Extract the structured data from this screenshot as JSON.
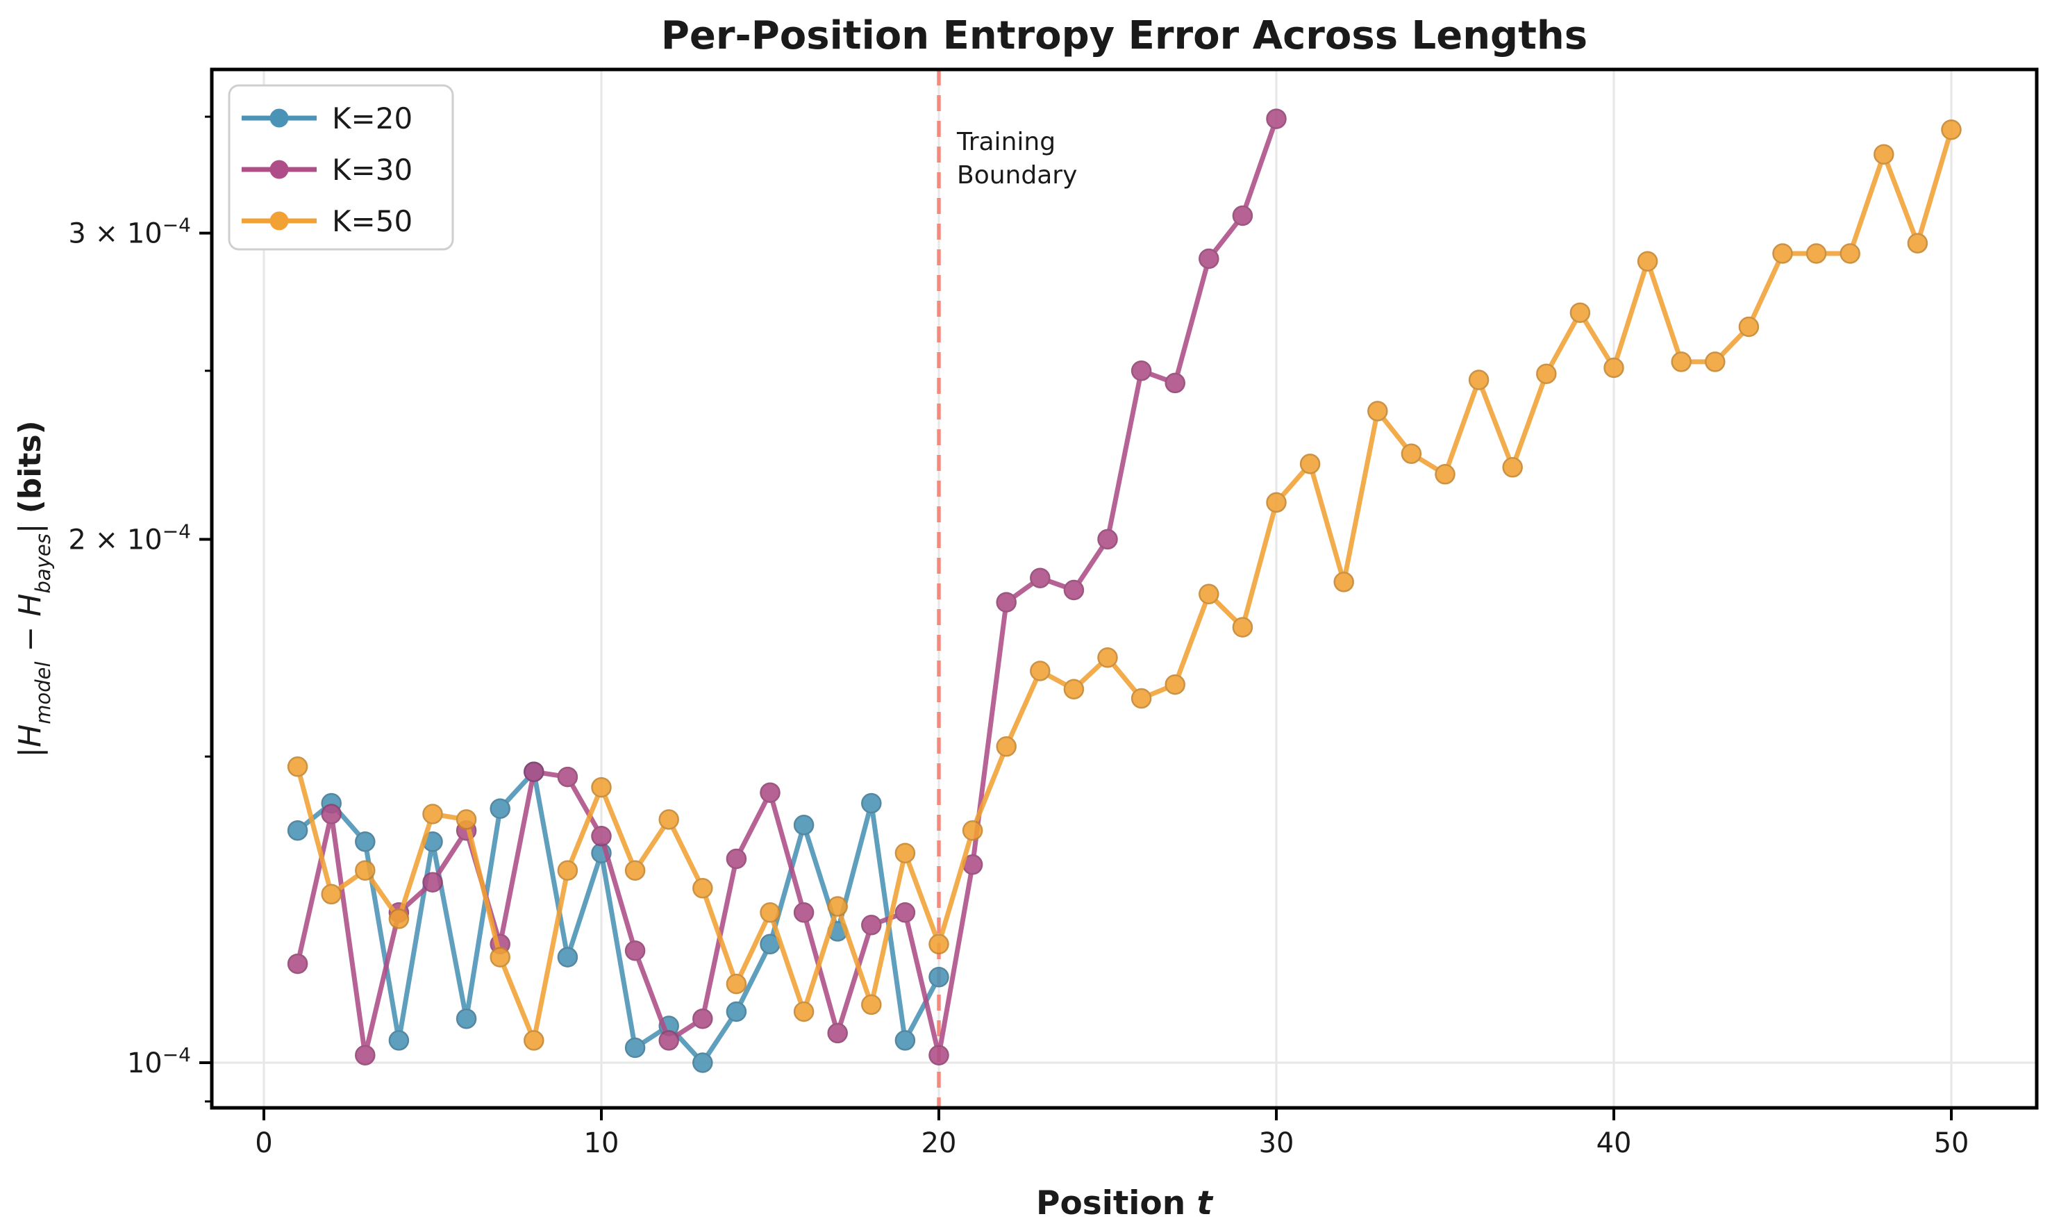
{
  "chart_data": {
    "type": "line",
    "title": "Per-Position Entropy Error Across Lengths",
    "xlabel_parts": {
      "word": "Position ",
      "var": "t"
    },
    "ylabel_parts": {
      "bar1": "|",
      "h1": "H",
      "sub1": "model",
      "minus": " − ",
      "h2": "H",
      "sub2": "bayes",
      "bar2": "| ",
      "units": "(bits)"
    },
    "yscale": "log",
    "xlim": [
      -1.543,
      52.53
    ],
    "ylim": [
      9.42e-05,
      0.0003726
    ],
    "xticks": [
      0,
      10,
      20,
      30,
      40,
      50
    ],
    "yticks": [
      {
        "value": 0.0001,
        "prefix": "",
        "base": "10",
        "exp": "−4",
        "major": true
      },
      {
        "value": 0.0002,
        "prefix": "2 × ",
        "base": "10",
        "exp": "−4",
        "major": false
      },
      {
        "value": 0.0003,
        "prefix": "3 × ",
        "base": "10",
        "exp": "−4",
        "major": false
      }
    ],
    "yticks_minor_unlabeled": [
      9.5e-05,
      0.00015,
      0.00025,
      0.00035
    ],
    "grid": {
      "x_major": true,
      "y_major": true,
      "color": "#e7e7e7"
    },
    "legend": {
      "position": "upper left",
      "entries": [
        "K=20",
        "K=30",
        "K=50"
      ]
    },
    "annotation": {
      "lines": [
        "Training",
        "Boundary"
      ],
      "x": 20,
      "line_color": "#f4796b",
      "text_color": "#ee4b3e",
      "line_style": "dashed"
    },
    "series": [
      {
        "label": "K=20",
        "color": "#4a92b6",
        "x": [
          1,
          2,
          3,
          4,
          5,
          6,
          7,
          8,
          9,
          10,
          11,
          12,
          13,
          14,
          15,
          16,
          17,
          18,
          19,
          20
        ],
        "values": [
          0.000136,
          0.000141,
          0.000134,
          0.000103,
          0.000134,
          0.000106,
          0.00014,
          0.000147,
          0.000115,
          0.000132,
          0.000102,
          0.000105,
          0.0001,
          0.000107,
          0.000117,
          0.000137,
          0.000119,
          0.000141,
          0.000103,
          0.000112
        ]
      },
      {
        "label": "K=30",
        "color": "#ae4d87",
        "x": [
          1,
          2,
          3,
          4,
          5,
          6,
          7,
          8,
          9,
          10,
          11,
          12,
          13,
          14,
          15,
          16,
          17,
          18,
          19,
          20,
          21,
          22,
          23,
          24,
          25,
          26,
          27,
          28,
          29,
          30
        ],
        "values": [
          0.000114,
          0.000139,
          0.000101,
          0.000122,
          0.000127,
          0.000136,
          0.000117,
          0.000147,
          0.000146,
          0.000135,
          0.000116,
          0.000103,
          0.000106,
          0.000131,
          0.000143,
          0.000122,
          0.000104,
          0.00012,
          0.000122,
          0.000101,
          0.00013,
          0.000184,
          0.00019,
          0.000187,
          0.0002,
          0.00025,
          0.000246,
          0.00029,
          0.000307,
          0.000349
        ]
      },
      {
        "label": "K=50",
        "color": "#f2a134",
        "x": [
          1,
          2,
          3,
          4,
          5,
          6,
          7,
          8,
          9,
          10,
          11,
          12,
          13,
          14,
          15,
          16,
          17,
          18,
          19,
          20,
          21,
          22,
          23,
          24,
          25,
          26,
          27,
          28,
          29,
          30,
          31,
          32,
          33,
          34,
          35,
          36,
          37,
          38,
          39,
          40,
          41,
          42,
          43,
          44,
          45,
          46,
          47,
          48,
          49,
          50
        ],
        "values": [
          0.000148,
          0.000125,
          0.000129,
          0.000121,
          0.000139,
          0.000138,
          0.000115,
          0.000103,
          0.000129,
          0.000144,
          0.000129,
          0.000138,
          0.000126,
          0.000111,
          0.000122,
          0.000107,
          0.000123,
          0.000108,
          0.000132,
          0.000117,
          0.000136,
          0.000152,
          0.000168,
          0.000164,
          0.000171,
          0.000162,
          0.000165,
          0.000186,
          0.000178,
          0.00021,
          0.000221,
          0.000189,
          0.000237,
          0.000224,
          0.000218,
          0.000247,
          0.00022,
          0.000249,
          0.00027,
          0.000251,
          0.000289,
          0.000253,
          0.000253,
          0.000265,
          0.000292,
          0.000292,
          0.000292,
          0.000333,
          0.000296,
          0.000344
        ]
      }
    ]
  }
}
